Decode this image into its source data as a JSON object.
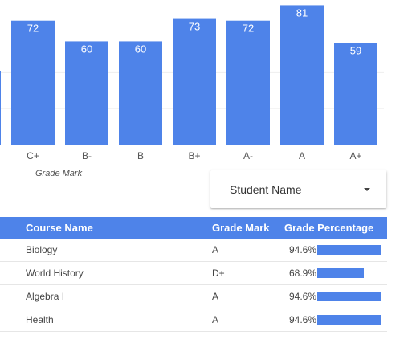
{
  "chart_data": {
    "type": "bar",
    "categories": [
      "C+",
      "B-",
      "B",
      "B+",
      "A-",
      "A",
      "A+"
    ],
    "values": [
      72,
      60,
      60,
      73,
      72,
      81,
      59
    ],
    "xlabel": "Grade Mark",
    "ylabel": "",
    "ylim": [
      0,
      84
    ],
    "bar_color": "#4e83e9",
    "grid": true
  },
  "filter": {
    "label": "Student Name"
  },
  "table": {
    "header_color": "#4e83e9",
    "columns": [
      "Course Name",
      "Grade Mark",
      "Grade Percentage"
    ],
    "rows": [
      {
        "course": "Biology",
        "mark": "A",
        "pct_label": "94.6%",
        "pct": 94.6
      },
      {
        "course": "World History",
        "mark": "D+",
        "pct_label": "68.9%",
        "pct": 68.9
      },
      {
        "course": "Algebra I",
        "mark": "A",
        "pct_label": "94.6%",
        "pct": 94.6
      },
      {
        "course": "Health",
        "mark": "A",
        "pct_label": "94.6%",
        "pct": 94.6
      }
    ]
  }
}
